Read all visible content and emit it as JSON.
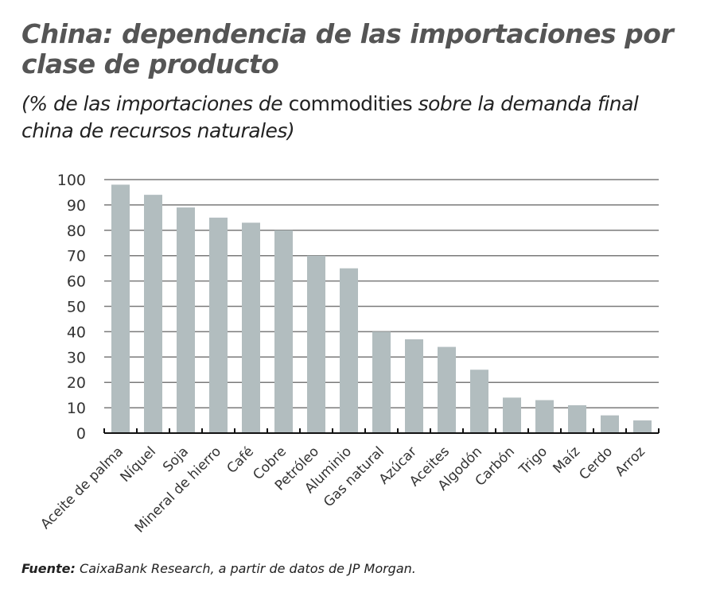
{
  "title": "China: dependencia de las importaciones por clase de producto",
  "subtitle": {
    "part1": "(% de las importaciones de ",
    "part2": "commodities",
    "part3": " sobre la demanda final china de recursos naturales)"
  },
  "source": {
    "label": "Fuente:",
    "text": " CaixaBank Research, a partir de datos de JP Morgan."
  },
  "chart_data": {
    "type": "bar",
    "title": "China: dependencia de las importaciones por clase de producto",
    "categories": [
      "Aceite de palma",
      "Níquel",
      "Soja",
      "Mineral de hierro",
      "Café",
      "Cobre",
      "Petróleo",
      "Aluminio",
      "Gas natural",
      "Azúcar",
      "Aceites",
      "Algodón",
      "Carbón",
      "Trigo",
      "Maíz",
      "Cerdo",
      "Arroz"
    ],
    "values": [
      98,
      94,
      89,
      85,
      83,
      80,
      70,
      65,
      40,
      37,
      34,
      25,
      14,
      13,
      11,
      7,
      5
    ],
    "ylim": [
      0,
      100
    ],
    "yticks": [
      "0",
      "10",
      "20",
      "30",
      "40",
      "50",
      "60",
      "70",
      "80",
      "90",
      "100"
    ],
    "grid": true,
    "bar_color": "#b2bdbf",
    "grid_color": "#7a7a7a"
  }
}
